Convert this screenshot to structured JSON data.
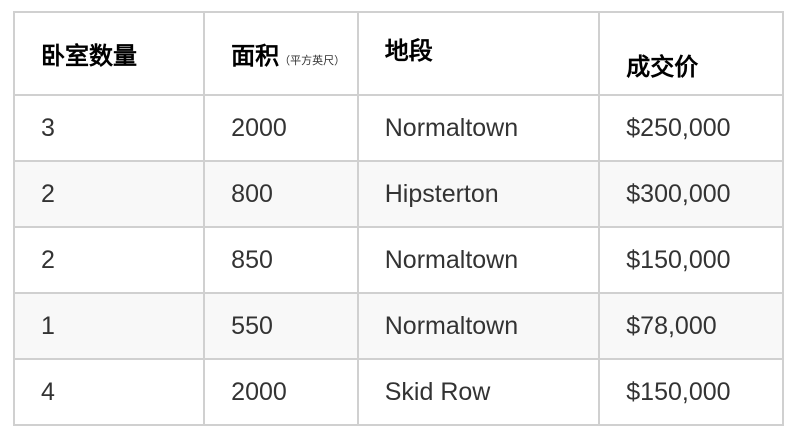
{
  "table": {
    "headers": [
      {
        "label": "卧室数量",
        "sub": ""
      },
      {
        "label": "面积",
        "sub": "（平方英尺）"
      },
      {
        "label": "地段",
        "sub": ""
      },
      {
        "label": "成交价",
        "sub": ""
      }
    ],
    "rows": [
      [
        "3",
        "2000",
        "Normaltown",
        "$250,000"
      ],
      [
        "2",
        "800",
        "Hipsterton",
        "$300,000"
      ],
      [
        "2",
        "850",
        "Normaltown",
        "$150,000"
      ],
      [
        "1",
        "550",
        "Normaltown",
        "$78,000"
      ],
      [
        "4",
        "2000",
        "Skid Row",
        "$150,000"
      ]
    ]
  }
}
